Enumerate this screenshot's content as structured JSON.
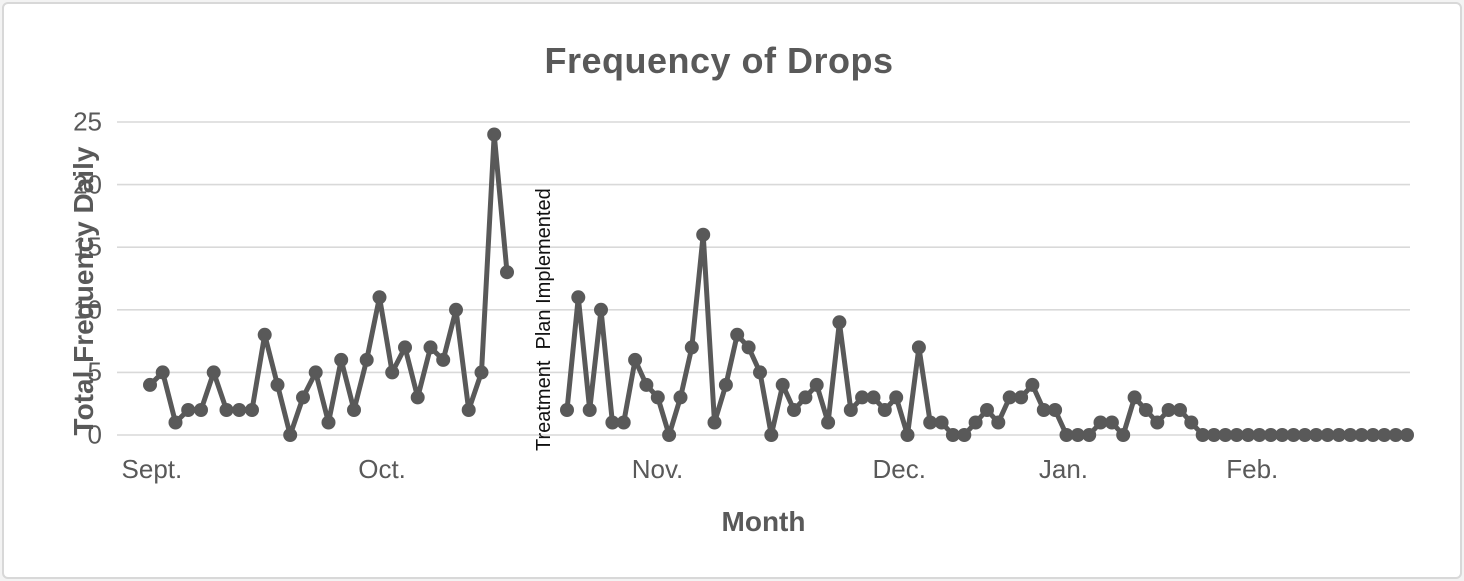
{
  "chart_data": {
    "type": "line",
    "title": "Frequency of Drops",
    "xlabel": "Month",
    "ylabel": "Total Frequency Daily",
    "annotation": "Treatment  Plan Implemented",
    "x_tick_labels": [
      "Sept.",
      "Oct.",
      "Nov.",
      "Dec.",
      "Jan.",
      "Feb."
    ],
    "yticks": [
      0,
      5,
      10,
      15,
      20,
      25
    ],
    "ylim": [
      0,
      25
    ],
    "grid": "horizontal-only",
    "legend": "none",
    "series_color": "#595959",
    "gridline_color": "#d9d9d9",
    "segments": [
      {
        "name": "pre-treatment",
        "values": [
          4,
          5,
          1,
          2,
          2,
          5,
          2,
          2,
          2,
          8,
          4,
          0,
          3,
          5,
          1,
          6,
          2,
          6,
          11,
          5,
          7,
          3,
          7,
          6,
          10,
          2,
          5,
          24,
          13
        ]
      },
      {
        "name": "post-treatment",
        "values": [
          2,
          11,
          2,
          10,
          1,
          1,
          6,
          4,
          3,
          0,
          3,
          7,
          16,
          1,
          4,
          8,
          7,
          5,
          0,
          4,
          2,
          3,
          4,
          1,
          9,
          2,
          3,
          3,
          2,
          3,
          0,
          7,
          1,
          1,
          0,
          0,
          1,
          2,
          1,
          3,
          3,
          4,
          2,
          2,
          0,
          0,
          0,
          1,
          1,
          0,
          3,
          2,
          1,
          2,
          2,
          1,
          0,
          0,
          0,
          0,
          0,
          0,
          0,
          0,
          0,
          0,
          0,
          0,
          0,
          0,
          0,
          0,
          0,
          0,
          0
        ]
      }
    ],
    "layout": {
      "month_fractions": [
        0.027,
        0.205,
        0.418,
        0.605,
        0.732,
        0.878
      ],
      "segment_fractions": [
        [
          0.0255,
          0.3016
        ],
        [
          0.348,
          0.9977
        ]
      ],
      "annotation_fraction": 0.326
    }
  }
}
